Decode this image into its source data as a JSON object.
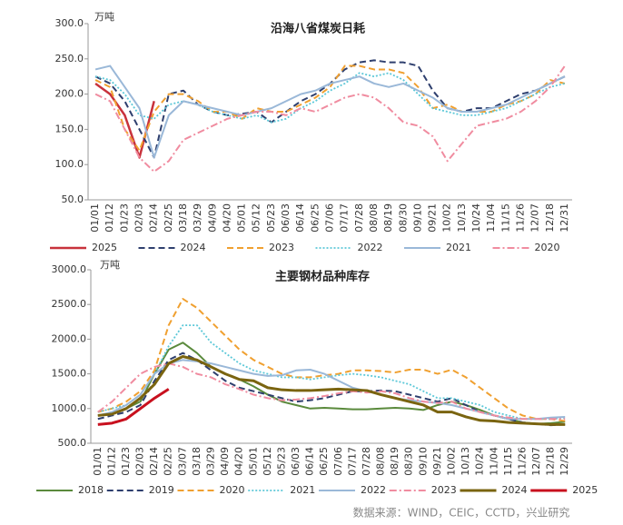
{
  "chart_data": [
    {
      "type": "line",
      "title": "沿海八省煤炭日耗",
      "unit": "万吨",
      "categories": [
        "01/01",
        "01/12",
        "01/23",
        "02/03",
        "02/14",
        "02/25",
        "03/18",
        "03/29",
        "04/09",
        "04/20",
        "05/01",
        "05/12",
        "05/23",
        "06/03",
        "06/14",
        "06/25",
        "07/06",
        "07/17",
        "07/28",
        "08/08",
        "08/19",
        "08/30",
        "09/10",
        "09/21",
        "10/02",
        "10/13",
        "10/24",
        "11/04",
        "11/15",
        "11/26",
        "12/07",
        "12/18",
        "12/31"
      ],
      "ylim": [
        50,
        300
      ],
      "yticks": [
        {
          "value": 50,
          "label": "50.0"
        },
        {
          "value": 100,
          "label": "100.0"
        },
        {
          "value": 150,
          "label": "150.0"
        },
        {
          "value": 200,
          "label": "200.0"
        },
        {
          "value": 250,
          "label": "250.0"
        },
        {
          "value": 300,
          "label": "300.0"
        }
      ],
      "legend": "bottom",
      "series": [
        {
          "name": "2025",
          "color": "#c8323c",
          "style": "solid",
          "linewidth": 2.5,
          "values": [
            215,
            200,
            170,
            110,
            190,
            null,
            null,
            null,
            null,
            null,
            null,
            null,
            null,
            null,
            null,
            null,
            null,
            null,
            null,
            null,
            null,
            null,
            null,
            null,
            null,
            null,
            null,
            null,
            null,
            null,
            null,
            null,
            null
          ]
        },
        {
          "name": "2024",
          "color": "#2e3f6e",
          "style": "dashed",
          "linewidth": 2,
          "values": [
            225,
            215,
            190,
            150,
            110,
            200,
            205,
            185,
            175,
            170,
            172,
            175,
            160,
            175,
            190,
            200,
            215,
            235,
            245,
            248,
            245,
            245,
            240,
            205,
            180,
            175,
            180,
            180,
            190,
            200,
            205,
            215,
            225
          ]
        },
        {
          "name": "2023",
          "color": "#f0a030",
          "style": "dashed",
          "linewidth": 2,
          "values": [
            220,
            210,
            150,
            120,
            175,
            200,
            200,
            190,
            175,
            175,
            165,
            180,
            175,
            175,
            185,
            195,
            210,
            240,
            240,
            235,
            235,
            230,
            210,
            180,
            185,
            175,
            175,
            175,
            185,
            190,
            200,
            220,
            215
          ]
        },
        {
          "name": "2022",
          "color": "#5cc8d8",
          "style": "dotted",
          "linewidth": 1.8,
          "values": [
            225,
            220,
            200,
            170,
            165,
            185,
            190,
            185,
            175,
            170,
            165,
            170,
            160,
            165,
            180,
            190,
            205,
            215,
            230,
            225,
            230,
            220,
            200,
            180,
            175,
            170,
            170,
            175,
            180,
            190,
            200,
            210,
            215
          ]
        },
        {
          "name": "2021",
          "color": "#9ab8d8",
          "style": "solid",
          "linewidth": 2,
          "values": [
            235,
            240,
            210,
            180,
            110,
            170,
            190,
            185,
            180,
            175,
            170,
            175,
            180,
            190,
            200,
            205,
            215,
            220,
            225,
            215,
            210,
            215,
            205,
            195,
            180,
            175,
            175,
            180,
            185,
            195,
            205,
            215,
            225
          ]
        },
        {
          "name": "2020",
          "color": "#f08ca0",
          "style": "dashdot",
          "linewidth": 2,
          "values": [
            200,
            190,
            150,
            110,
            90,
            105,
            135,
            145,
            155,
            165,
            170,
            175,
            175,
            170,
            180,
            175,
            185,
            195,
            200,
            195,
            180,
            160,
            155,
            140,
            105,
            130,
            155,
            160,
            165,
            175,
            190,
            210,
            240
          ]
        }
      ]
    },
    {
      "type": "line",
      "title": "主要钢材品种库存",
      "unit": "万吨",
      "categories": [
        "01/01",
        "01/12",
        "01/23",
        "02/03",
        "02/14",
        "02/25",
        "03/07",
        "03/18",
        "03/29",
        "04/09",
        "04/20",
        "05/01",
        "05/12",
        "05/23",
        "06/03",
        "06/14",
        "06/25",
        "07/06",
        "07/17",
        "07/28",
        "08/08",
        "08/19",
        "08/30",
        "09/10",
        "09/21",
        "10/02",
        "10/13",
        "10/24",
        "11/04",
        "11/15",
        "11/26",
        "12/07",
        "12/18",
        "12/29"
      ],
      "ylim": [
        500,
        3000
      ],
      "yticks": [
        {
          "value": 500,
          "label": "500.0"
        },
        {
          "value": 1000,
          "label": "1000.0"
        },
        {
          "value": 1500,
          "label": "1500.0"
        },
        {
          "value": 2000,
          "label": "2000.0"
        },
        {
          "value": 2500,
          "label": "2500.0"
        },
        {
          "value": 3000,
          "label": "3000.0"
        }
      ],
      "legend": "bottom",
      "series": [
        {
          "name": "2018",
          "color": "#5a8a3c",
          "style": "solid",
          "linewidth": 2,
          "values": [
            900,
            920,
            1000,
            1100,
            1500,
            1850,
            1950,
            1800,
            1600,
            1500,
            1420,
            1320,
            1200,
            1100,
            1050,
            1000,
            1010,
            1000,
            990,
            990,
            1000,
            1010,
            1000,
            980,
            1050,
            1100,
            1050,
            980,
            900,
            850,
            800,
            780,
            790,
            810
          ]
        },
        {
          "name": "2019",
          "color": "#2e3f6e",
          "style": "dashed",
          "linewidth": 2,
          "values": [
            850,
            900,
            950,
            1050,
            1400,
            1700,
            1800,
            1700,
            1550,
            1400,
            1300,
            1250,
            1200,
            1150,
            1100,
            1120,
            1150,
            1200,
            1250,
            1250,
            1260,
            1250,
            1200,
            1150,
            1100,
            1150,
            1050,
            950,
            900,
            850,
            800,
            780,
            760,
            770
          ]
        },
        {
          "name": "2020",
          "color": "#f0a030",
          "style": "dashed",
          "linewidth": 2,
          "values": [
            950,
            1000,
            1100,
            1250,
            1550,
            2200,
            2580,
            2450,
            2250,
            2050,
            1850,
            1700,
            1600,
            1500,
            1450,
            1450,
            1480,
            1500,
            1550,
            1550,
            1540,
            1520,
            1560,
            1560,
            1500,
            1560,
            1450,
            1300,
            1150,
            1000,
            900,
            850,
            850,
            820
          ]
        },
        {
          "name": "2021",
          "color": "#5cc8d8",
          "style": "dotted",
          "linewidth": 1.8,
          "values": [
            950,
            1000,
            1050,
            1200,
            1500,
            1900,
            2200,
            2200,
            1950,
            1800,
            1650,
            1550,
            1500,
            1450,
            1450,
            1420,
            1450,
            1480,
            1500,
            1480,
            1450,
            1400,
            1350,
            1250,
            1150,
            1150,
            1100,
            1050,
            950,
            900,
            850,
            850,
            850,
            870
          ]
        },
        {
          "name": "2022",
          "color": "#9ab8d8",
          "style": "solid",
          "linewidth": 2,
          "values": [
            900,
            950,
            1050,
            1200,
            1500,
            1650,
            1700,
            1680,
            1650,
            1600,
            1550,
            1500,
            1470,
            1480,
            1550,
            1560,
            1500,
            1400,
            1300,
            1250,
            1200,
            1150,
            1120,
            1100,
            1080,
            1050,
            1000,
            950,
            900,
            850,
            850,
            850,
            870,
            880
          ]
        },
        {
          "name": "2023",
          "color": "#f08ca0",
          "style": "dashdot",
          "linewidth": 2,
          "values": [
            950,
            1100,
            1300,
            1500,
            1600,
            1650,
            1600,
            1500,
            1450,
            1350,
            1280,
            1200,
            1150,
            1120,
            1130,
            1150,
            1180,
            1220,
            1250,
            1230,
            1250,
            1220,
            1150,
            1100,
            1080,
            1100,
            1000,
            950,
            900,
            870,
            850,
            850,
            850,
            850
          ]
        },
        {
          "name": "2024",
          "color": "#7a6410",
          "style": "solid",
          "linewidth": 3,
          "values": [
            900,
            920,
            1000,
            1150,
            1350,
            1650,
            1750,
            1700,
            1600,
            1500,
            1420,
            1400,
            1300,
            1270,
            1260,
            1260,
            1270,
            1280,
            1270,
            1260,
            1200,
            1150,
            1100,
            1050,
            950,
            950,
            880,
            830,
            820,
            800,
            790,
            780,
            770,
            770
          ]
        },
        {
          "name": "2025",
          "color": "#c8101e",
          "style": "solid",
          "linewidth": 3,
          "values": [
            770,
            790,
            850,
            1000,
            1150,
            1280,
            null,
            null,
            null,
            null,
            null,
            null,
            null,
            null,
            null,
            null,
            null,
            null,
            null,
            null,
            null,
            null,
            null,
            null,
            null,
            null,
            null,
            null,
            null,
            null,
            null,
            null,
            null,
            null
          ]
        }
      ]
    }
  ],
  "source": "数据来源：WIND，CEIC，CCTD，兴业研究"
}
